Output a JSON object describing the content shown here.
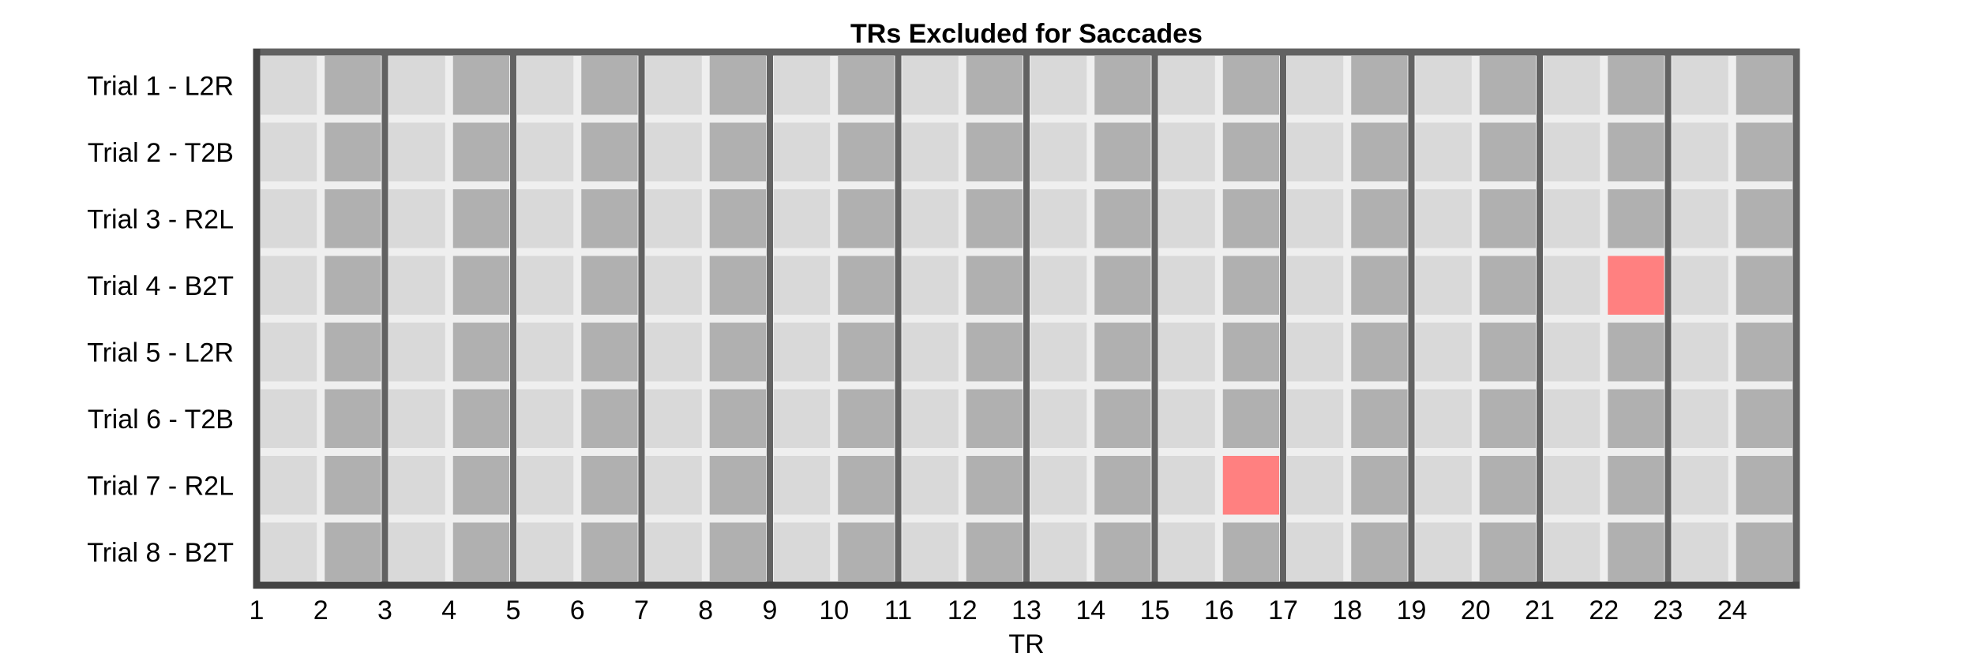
{
  "chart_data": {
    "type": "heatmap",
    "title": "TRs Excluded for Saccades",
    "xlabel": "TR",
    "ylabel": "",
    "x_ticks": [
      "1",
      "2",
      "3",
      "4",
      "5",
      "6",
      "7",
      "8",
      "9",
      "10",
      "11",
      "12",
      "13",
      "14",
      "15",
      "16",
      "17",
      "18",
      "19",
      "20",
      "21",
      "22",
      "23",
      "24"
    ],
    "rows": [
      "Trial 1 - L2R",
      "Trial 2 - T2B",
      "Trial 3 - R2L",
      "Trial 4 - B2T",
      "Trial 5 - L2R",
      "Trial 6 - T2B",
      "Trial 7 - R2L",
      "Trial 8 - B2T"
    ],
    "n_tr": 24,
    "excluded": [
      {
        "trial": "Trial 4 - B2T",
        "tr": 22
      },
      {
        "trial": "Trial 7 - R2L",
        "tr": 16
      }
    ],
    "colors": {
      "light_cell": "#d9d9d9",
      "dark_cell": "#b0b0b0",
      "excluded_cell": "#ff8080",
      "grid_gap": "#efefef",
      "divider": "#626262",
      "frame": "#444444"
    },
    "grid": true,
    "legend": "none"
  }
}
